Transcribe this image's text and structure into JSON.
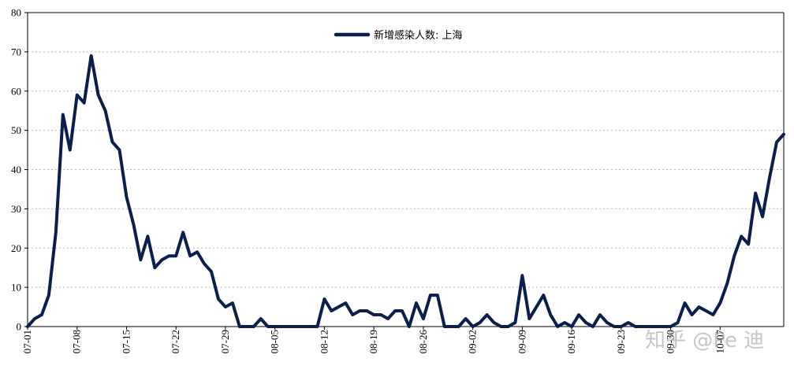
{
  "chart_data": {
    "type": "line",
    "title": "",
    "xlabel": "",
    "ylabel": "",
    "ylim": [
      0,
      80
    ],
    "yticks": [
      0,
      10,
      20,
      30,
      40,
      50,
      60,
      70,
      80
    ],
    "grid": true,
    "legend_position": "top-center",
    "x_tick_labels": [
      "07-01",
      "07-08",
      "07-15",
      "07-22",
      "07-29",
      "08-05",
      "08-12",
      "08-19",
      "08-26",
      "09-02",
      "09-09",
      "09-16",
      "09-23",
      "09-30",
      "10-07"
    ],
    "x_tick_step_days": 7,
    "series": [
      {
        "name": "新增感染人数: 上海",
        "color": "#0b1f4d",
        "values": [
          0,
          2,
          3,
          8,
          24,
          54,
          45,
          59,
          57,
          69,
          59,
          55,
          47,
          45,
          33,
          26,
          17,
          23,
          15,
          17,
          18,
          18,
          24,
          18,
          19,
          16,
          14,
          7,
          5,
          6,
          0,
          0,
          0,
          2,
          0,
          0,
          0,
          0,
          0,
          0,
          0,
          0,
          7,
          4,
          5,
          6,
          3,
          4,
          4,
          3,
          3,
          2,
          4,
          4,
          0,
          6,
          2,
          8,
          8,
          0,
          0,
          0,
          2,
          0,
          1,
          3,
          1,
          0,
          0,
          1,
          13,
          2,
          5,
          8,
          3,
          0,
          1,
          0,
          3,
          1,
          0,
          3,
          1,
          0,
          0,
          1,
          0,
          0,
          0,
          0,
          0,
          0,
          1,
          6,
          3,
          5,
          4,
          3,
          6,
          11,
          18,
          23,
          21,
          34,
          28,
          38,
          47,
          49
        ]
      }
    ]
  },
  "watermark": "知乎 @Pe 迪"
}
